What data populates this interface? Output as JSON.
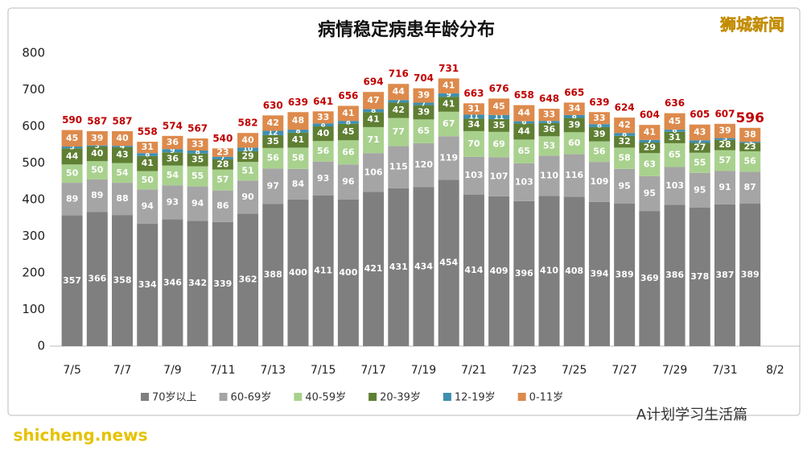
{
  "chart_data": {
    "type": "stacked_bar",
    "title": "病情稳定病患年龄分布",
    "categories": [
      "7/5",
      null,
      "7/7",
      null,
      "7/9",
      null,
      "7/11",
      null,
      "7/13",
      null,
      "7/15",
      null,
      "7/17",
      null,
      "7/19",
      null,
      "7/21",
      null,
      "7/23",
      null,
      "7/25",
      null,
      "7/27",
      null,
      "7/29",
      null,
      "7/31",
      null,
      "8/2"
    ],
    "series": [
      {
        "name": "70岁以上",
        "color": "#7f7f7f",
        "values": [
          357,
          366,
          358,
          334,
          346,
          342,
          339,
          362,
          388,
          400,
          411,
          400,
          421,
          431,
          434,
          454,
          414,
          409,
          396,
          410,
          408,
          394,
          389,
          369,
          386,
          378,
          387,
          389,
          null
        ]
      },
      {
        "name": "60-69岁",
        "color": "#a5a5a5",
        "values": [
          89,
          89,
          88,
          94,
          93,
          94,
          86,
          90,
          97,
          84,
          93,
          96,
          106,
          115,
          120,
          119,
          103,
          107,
          103,
          110,
          116,
          109,
          95,
          95,
          103,
          95,
          91,
          87,
          null
        ]
      },
      {
        "name": "40-59岁",
        "color": "#a9d18e",
        "values": [
          50,
          50,
          54,
          50,
          54,
          55,
          57,
          51,
          56,
          58,
          56,
          66,
          71,
          77,
          65,
          67,
          70,
          69,
          65,
          53,
          60,
          56,
          58,
          63,
          65,
          55,
          57,
          56,
          null
        ]
      },
      {
        "name": "20-39岁",
        "color": "#5f7f33",
        "values": [
          44,
          40,
          43,
          41,
          36,
          35,
          28,
          29,
          35,
          41,
          40,
          45,
          41,
          42,
          39,
          41,
          34,
          35,
          44,
          36,
          39,
          39,
          32,
          29,
          31,
          27,
          28,
          23,
          null
        ]
      },
      {
        "name": "12-19岁",
        "color": "#3e8fb0",
        "values": [
          5,
          3,
          4,
          8,
          9,
          8,
          7,
          10,
          12,
          8,
          8,
          8,
          8,
          7,
          7,
          9,
          11,
          11,
          6,
          6,
          8,
          8,
          8,
          7,
          6,
          7,
          5,
          3,
          null
        ]
      },
      {
        "name": "0-11岁",
        "color": "#dd8a4c",
        "values": [
          45,
          39,
          40,
          31,
          36,
          33,
          23,
          40,
          42,
          48,
          33,
          41,
          47,
          44,
          39,
          41,
          31,
          45,
          44,
          33,
          34,
          33,
          42,
          41,
          45,
          43,
          39,
          38,
          null
        ]
      }
    ],
    "totals": [
      590,
      587,
      587,
      558,
      574,
      567,
      540,
      582,
      630,
      639,
      641,
      656,
      694,
      716,
      704,
      731,
      663,
      676,
      658,
      648,
      665,
      639,
      624,
      604,
      636,
      605,
      607,
      596,
      null
    ],
    "ylim": [
      0,
      800
    ],
    "yticks": [
      0,
      100,
      200,
      300,
      400,
      500,
      600,
      700,
      800
    ],
    "grid": false
  },
  "watermarks": {
    "top": "狮城新闻",
    "bottom_right": "A计划学习生活篇",
    "bottom_left": "shicheng.news"
  }
}
